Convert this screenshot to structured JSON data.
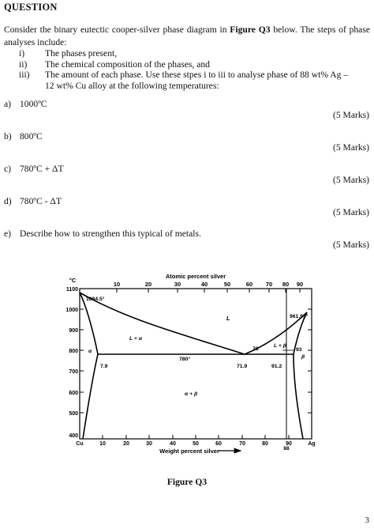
{
  "heading": "QUESTION",
  "intro_pre": "Consider the binary eutectic cooper-silver phase diagram in ",
  "intro_bold": "Figure Q3",
  "intro_post": " below. The steps of phase analyses include:",
  "steps": [
    {
      "num": "i)",
      "text": "The phases present,"
    },
    {
      "num": "ii)",
      "text": "The chemical composition of the phases, and"
    },
    {
      "num": "iii)",
      "text": "The amount of each phase. Use these stpes i to iii  to analyse phase of 88 wt%  Ag –"
    },
    {
      "num": "",
      "text": "12 wt% Cu alloy at the following temperatures:"
    }
  ],
  "questions": [
    {
      "label": "a)",
      "text": "1000ºC",
      "marks": "(5 Marks)"
    },
    {
      "label": "b)",
      "text": "800ºC",
      "marks": "(5 Marks)"
    },
    {
      "label": "c)",
      "text": "780ºC  +  ΔT",
      "marks": "(5 Marks)"
    },
    {
      "label": "d)",
      "text": "780ºC  -  ΔT",
      "marks": "(5 Marks)"
    },
    {
      "label": "e)",
      "text": "Describe how to strengthen this typical of metals.",
      "marks": "(5 Marks)"
    }
  ],
  "figure": {
    "caption": "Figure Q3",
    "top_axis_title": "Atomic percent silver",
    "bottom_axis_title": "Weight percent silver",
    "y_unit": "°C",
    "y_ticks": [
      "1100",
      "1000",
      "900",
      "800",
      "700",
      "600",
      "500",
      "400"
    ],
    "x_ticks": [
      "Cu",
      "10",
      "20",
      "30",
      "40",
      "50",
      "60",
      "70",
      "80",
      "90",
      "Ag"
    ],
    "top_ticks": [
      "10",
      "20",
      "30",
      "40",
      "50",
      "60",
      "70",
      "80",
      "90"
    ],
    "labels": {
      "cu_melt": "1084.5°",
      "ag_melt": "961.93°",
      "liquid": "L",
      "l_alpha": "L + α",
      "l_beta": "L + β",
      "alpha": "α",
      "beta": "β",
      "alpha_beta": "α + β",
      "eutectic_temp": "780°",
      "alpha_solvus": "7.9",
      "eutectic_comp": "71.9",
      "beta_solvus": "91.2",
      "liquid_78": "78",
      "liquid_93": "93",
      "alloy_88": "88"
    }
  },
  "page_number": "3"
}
